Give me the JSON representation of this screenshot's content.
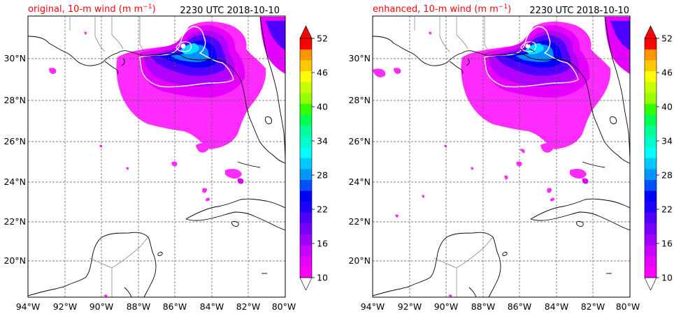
{
  "panels": [
    {
      "id": "original",
      "title_prefix": "original, 10-m wind (m m",
      "title_sup": "−1",
      "title_suffix": ")",
      "time_label": "2230 UTC 2018-10-10"
    },
    {
      "id": "enhanced",
      "title_prefix": "enhanced, 10-m wind (m m",
      "title_sup": "−1",
      "title_suffix": ")",
      "time_label": "2230 UTC 2018-10-10"
    }
  ],
  "lon_ticks": [
    "94°W",
    "92°W",
    "90°W",
    "88°W",
    "86°W",
    "84°W",
    "82°W",
    "80°W"
  ],
  "lat_ticks": [
    "30°N",
    "28°N",
    "26°N",
    "24°N",
    "22°N",
    "20°N"
  ],
  "colorbar": {
    "tick_labels": [
      "10",
      "16",
      "22",
      "28",
      "34",
      "40",
      "46",
      "52"
    ],
    "min": 10,
    "max": 52,
    "step": 2,
    "colors": [
      "#ff00ff",
      "#e600ff",
      "#c800ff",
      "#a000ff",
      "#7800ff",
      "#5000ff",
      "#1e00ff",
      "#0000ff",
      "#0050ff",
      "#0096ff",
      "#00c8ff",
      "#00ffff",
      "#00ffc8",
      "#00ff96",
      "#00ff50",
      "#32ff00",
      "#96ff00",
      "#c8ff00",
      "#ffff00",
      "#ffc800",
      "#ff9600",
      "#ff0000"
    ],
    "extend_min_color": "#ffffff",
    "extend_max_color": "#ff0000"
  },
  "colors": {
    "title_left": "#ff0000",
    "title_right": "#000000",
    "contour": "#ffffff"
  },
  "chart_data": {
    "type": "map",
    "region": {
      "lon_range": [
        -94,
        -80
      ],
      "lat_range": [
        18.1,
        32.3
      ]
    },
    "variable": "10-m wind",
    "units": "m m−1",
    "time": "2230 UTC 2018-10-10",
    "color_range": [
      10,
      52
    ]
  }
}
